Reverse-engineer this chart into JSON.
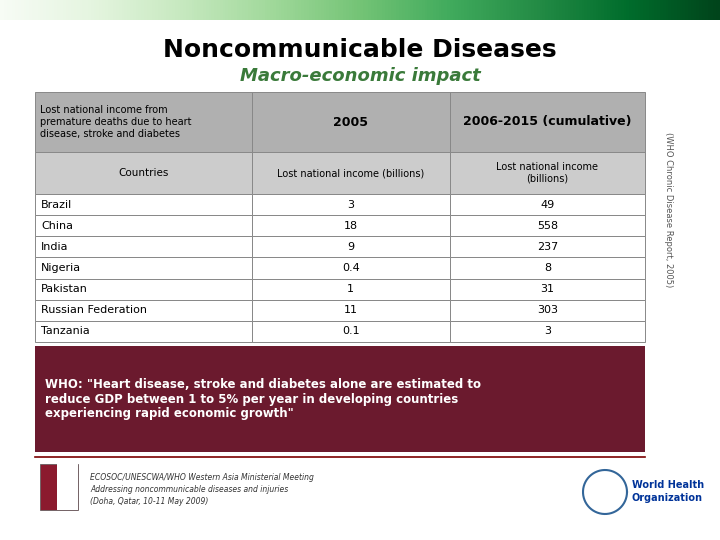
{
  "title": "Noncommunicable Diseases",
  "subtitle": "Macro-economic impact",
  "title_color": "#000000",
  "subtitle_color": "#3a7a3a",
  "header_row1_col0": "Lost national income from\npremature deaths due to heart\ndisease, stroke and diabetes",
  "header_row1_col1": "2005",
  "header_row1_col2": "2006-2015 (cumulative)",
  "header_row2_col0": "Countries",
  "header_row2_col1": "Lost national income (billions)",
  "header_row2_col2": "Lost national income\n(billions)",
  "countries": [
    "Brazil",
    "China",
    "India",
    "Nigeria",
    "Pakistan",
    "Russian Federation",
    "Tanzania"
  ],
  "values_2005": [
    "3",
    "18",
    "9",
    "0.4",
    "1",
    "11",
    "0.1"
  ],
  "values_cumulative": [
    "49",
    "558",
    "237",
    "8",
    "31",
    "303",
    "3"
  ],
  "quote_line1": "WHO: \"Heart disease, stroke and diabetes alone are estimated to",
  "quote_line2": "reduce GDP between 1 to 5% per year in developing countries",
  "quote_line3": "experiencing rapid economic growth\"",
  "quote_bg_color": "#6b1a2e",
  "quote_text_color": "#ffffff",
  "header_bg_color": "#b0b0b0",
  "subheader_bg_color": "#cccccc",
  "table_border_color": "#888888",
  "side_text": "(WHO Chronic Disease Report, 2005)",
  "footer_text1": "ECOSOC/UNESCWA/WHO Western Asia Ministerial Meeting",
  "footer_text2": "Addressing noncommunicable diseases and injuries",
  "footer_text3": "(Doha, Qatar, 10-11 May 2009)",
  "footer_line_color": "#7a0000",
  "bg_color": "#ffffff"
}
